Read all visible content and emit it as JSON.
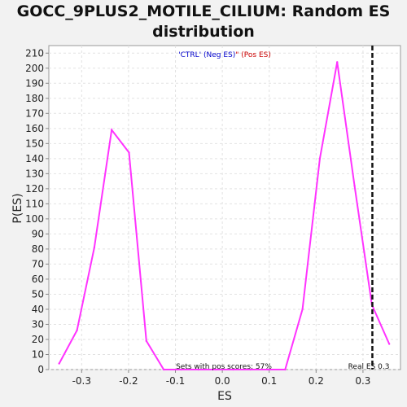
{
  "chart_data": {
    "type": "line",
    "title_lines": [
      "GOCC_9PLUS2_MOTILE_CILIUM: Random ES",
      "distribution"
    ],
    "xlabel": "ES",
    "ylabel": "P(ES)",
    "xlim": [
      -0.37,
      0.38
    ],
    "ylim": [
      0,
      215
    ],
    "x_ticks": [
      -0.3,
      -0.2,
      -0.1,
      0.0,
      0.1,
      0.2,
      0.3
    ],
    "x_tick_labels": [
      "-0.3",
      "-0.2",
      "-0.1",
      "0.0",
      "0.1",
      "0.2",
      "0.3"
    ],
    "y_ticks": [
      0,
      10,
      20,
      30,
      40,
      50,
      60,
      70,
      80,
      90,
      100,
      110,
      120,
      130,
      140,
      150,
      160,
      170,
      180,
      190,
      200,
      210
    ],
    "grid": true,
    "legend": {
      "placement": "top-center",
      "neg_label": "'CTRL' (Neg ES)",
      "neg_color": "#0000cc",
      "pos_label": "\" (Pos ES)",
      "pos_color": "#cc0000"
    },
    "series": [
      {
        "color": "#ff33ff",
        "x": [
          -0.348,
          -0.31,
          -0.273,
          -0.236,
          -0.199,
          -0.162,
          -0.125,
          -0.088,
          -0.051,
          -0.014,
          0.023,
          0.06,
          0.097,
          0.134,
          0.171,
          0.208,
          0.245,
          0.282,
          0.319,
          0.356
        ],
        "y": [
          4,
          26,
          81,
          159,
          144,
          19,
          0,
          0,
          0,
          0,
          0,
          0,
          0,
          0,
          40,
          140,
          204,
          122,
          43,
          17
        ]
      }
    ],
    "reference_line": {
      "x": 0.32,
      "style": "dashed",
      "color": "#111111",
      "label": "Real ES 0.3"
    },
    "annotation": "Sets with pos scores: 57%"
  }
}
